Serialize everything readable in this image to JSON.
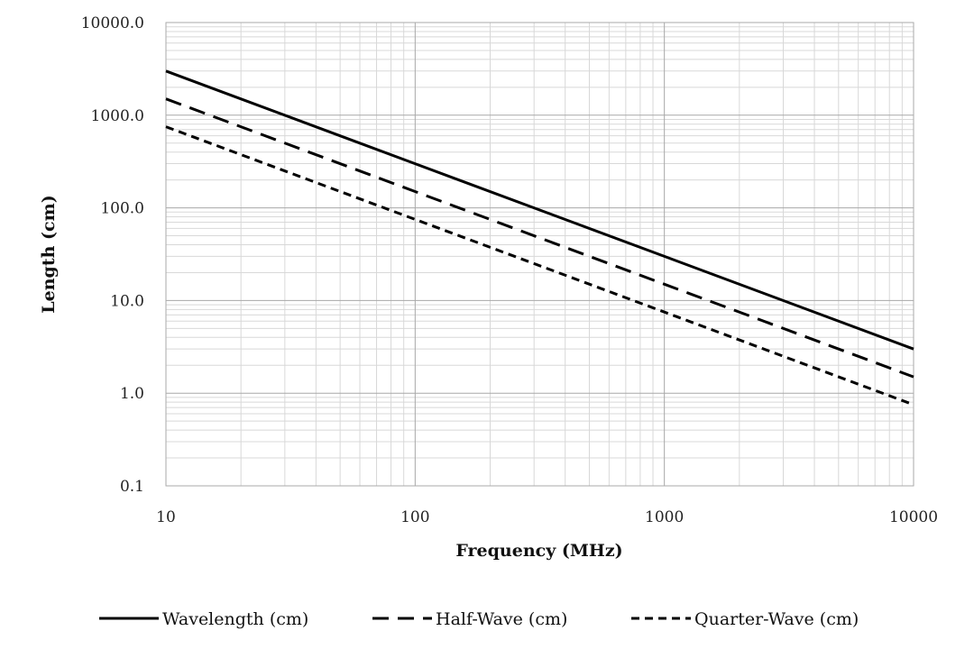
{
  "chart_data": {
    "type": "line",
    "title": "",
    "xlabel": "Frequency (MHz)",
    "ylabel": "Length (cm)",
    "x_scale": "log",
    "y_scale": "log",
    "xlim": [
      10,
      10000
    ],
    "ylim": [
      0.1,
      10000
    ],
    "x_ticks": [
      "10",
      "100",
      "1000",
      "10000"
    ],
    "y_ticks": [
      "0.1",
      "1.0",
      "10.0",
      "100.0",
      "1000.0",
      "10000.0"
    ],
    "grid": true,
    "legend_position": "bottom",
    "series": [
      {
        "name": "Wavelength (cm)",
        "style": "solid",
        "color": "#000000",
        "x": [
          10,
          100,
          1000,
          10000
        ],
        "y": [
          3000,
          300,
          30,
          3
        ]
      },
      {
        "name": "Half-Wave (cm)",
        "style": "long-dash",
        "color": "#000000",
        "x": [
          10,
          100,
          1000,
          10000
        ],
        "y": [
          1500,
          150,
          15,
          1.5
        ]
      },
      {
        "name": "Quarter-Wave (cm)",
        "style": "short-dash",
        "color": "#000000",
        "x": [
          10,
          100,
          1000,
          10000
        ],
        "y": [
          750,
          75,
          7.5,
          0.75
        ]
      }
    ]
  }
}
